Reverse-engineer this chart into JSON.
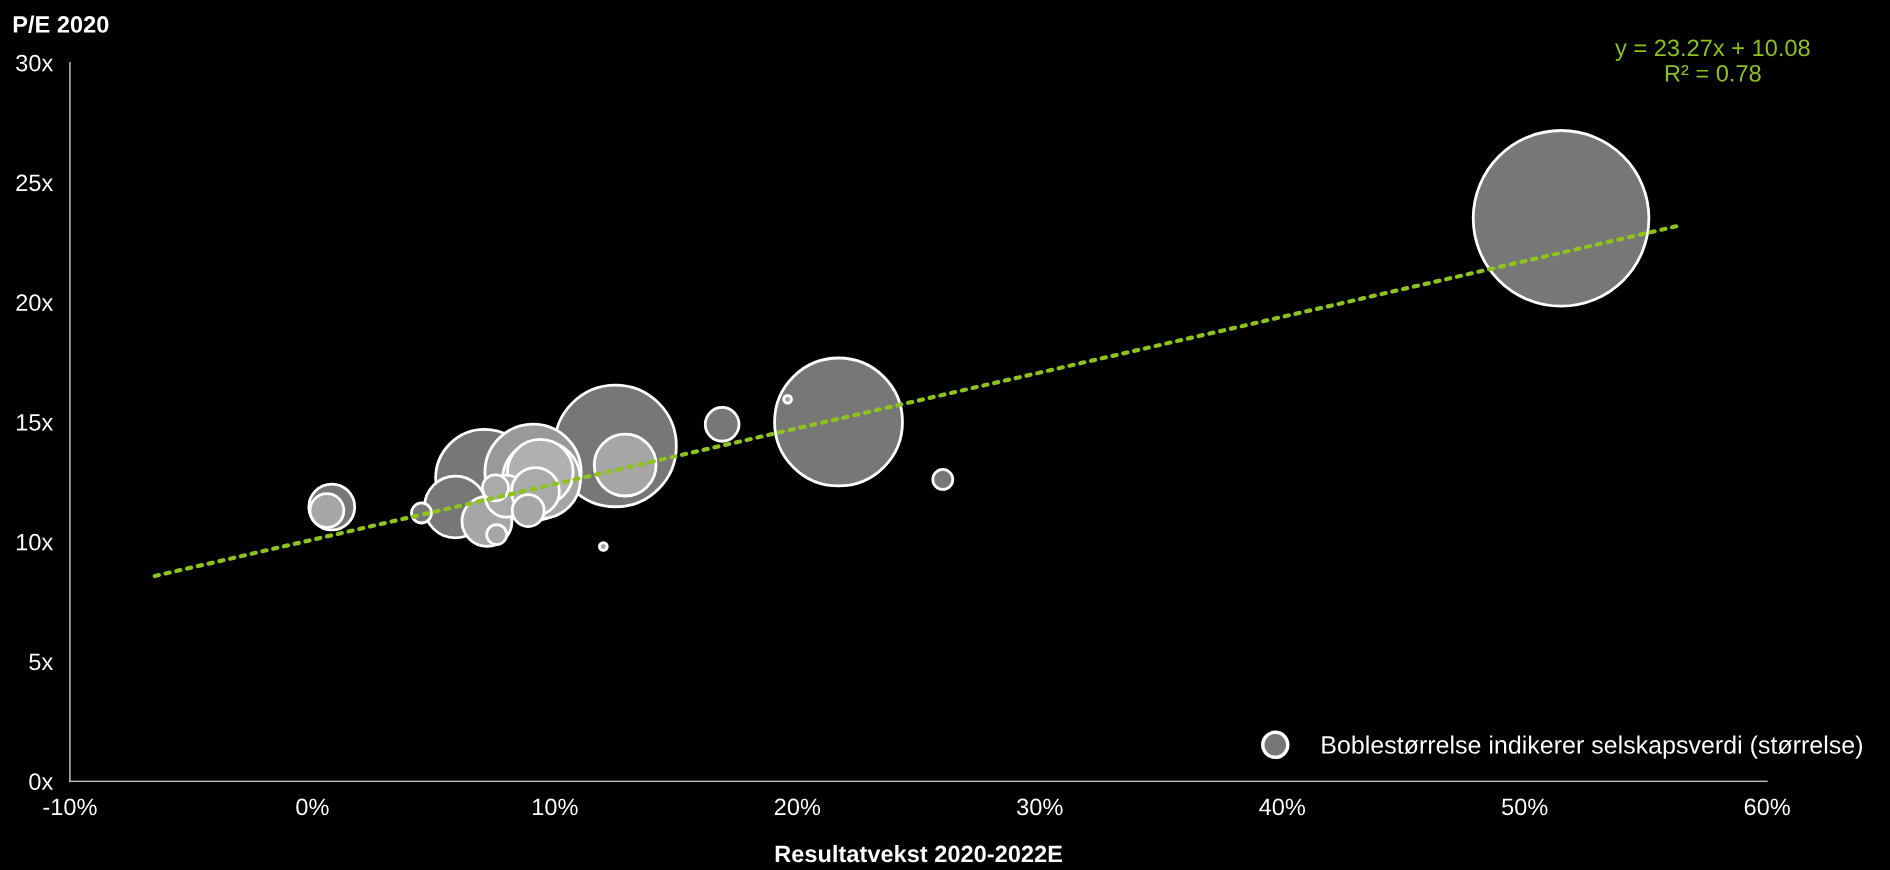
{
  "chart_data": {
    "type": "bubble",
    "xlabel": "Resultatvekst 2020-2022E",
    "ylabel": "P/E 2020",
    "annotations": [
      "y = 23.27x + 10.08\nR² = 0.78"
    ],
    "xlim": [
      -10,
      60
    ],
    "xticks": [
      {
        "value": -10,
        "label": "-10%"
      },
      {
        "value": 0,
        "label": "0%"
      },
      {
        "value": 10,
        "label": "10%"
      },
      {
        "value": 20,
        "label": "20%"
      },
      {
        "value": 30,
        "label": "30%"
      },
      {
        "value": 40,
        "label": "40%"
      },
      {
        "value": 50,
        "label": "50%"
      },
      {
        "value": 60,
        "label": "60%"
      }
    ],
    "ylim": [
      0,
      30
    ],
    "yticks": [
      {
        "value": 0,
        "label": "0x"
      },
      {
        "value": 5,
        "label": "5x"
      },
      {
        "value": 10,
        "label": "10x"
      },
      {
        "value": 15,
        "label": "15x"
      },
      {
        "value": 20,
        "label": "20x"
      },
      {
        "value": 25,
        "label": "25x"
      },
      {
        "value": 30,
        "label": "30x"
      }
    ],
    "grid": false,
    "legend": "bottom right",
    "series": [
      {
        "name": "Boblestørrelse indikerer selskapsverdi (størrelse)",
        "color": "#777777",
        "x": [
          51.5,
          21.7,
          12.5,
          12.9,
          7.1,
          9.1,
          9.45,
          9.4,
          5.9,
          7.2,
          8.0,
          9.2,
          7.55,
          8.9,
          7.6,
          0.8,
          0.6,
          4.5,
          16.9,
          26.0,
          19.6,
          12.0
        ],
        "values": [
          23.5,
          15.0,
          14.0,
          13.2,
          12.65,
          12.9,
          12.6,
          12.9,
          11.45,
          10.85,
          11.9,
          12.1,
          12.25,
          11.3,
          10.3,
          11.45,
          11.3,
          11.2,
          14.9,
          12.6,
          15.95,
          9.8
        ],
        "sizes": [
          1,
          0.53,
          0.48,
          0.124,
          0.31,
          0.3,
          0.196,
          0.14,
          0.124,
          0.081,
          0.057,
          0.074,
          0.022,
          0.033,
          0.013,
          0.068,
          0.037,
          0.013,
          0.037,
          0.013,
          0.002,
          0.002
        ],
        "colors": [
          "#777777",
          "#777777",
          "#777777",
          "#a6a6a6",
          "#777777",
          "#999999",
          "#a6a6a6",
          "#b0b0b0",
          "#777777",
          "#a6a6a6",
          "#aaaaaa",
          "#aaaaaa",
          "#aaaaaa",
          "#a6a6a6",
          "#a6a6a6",
          "#777777",
          "#a6a6a6",
          "#777777",
          "#777777",
          "#777777",
          "#a6a6a6",
          "#a6a6a6"
        ]
      },
      {
        "type": "line",
        "color": "#8dc21f",
        "line_style": "dotted",
        "x": [
          -6.5,
          56.3
        ],
        "values": [
          8.57,
          23.18
        ]
      }
    ]
  }
}
